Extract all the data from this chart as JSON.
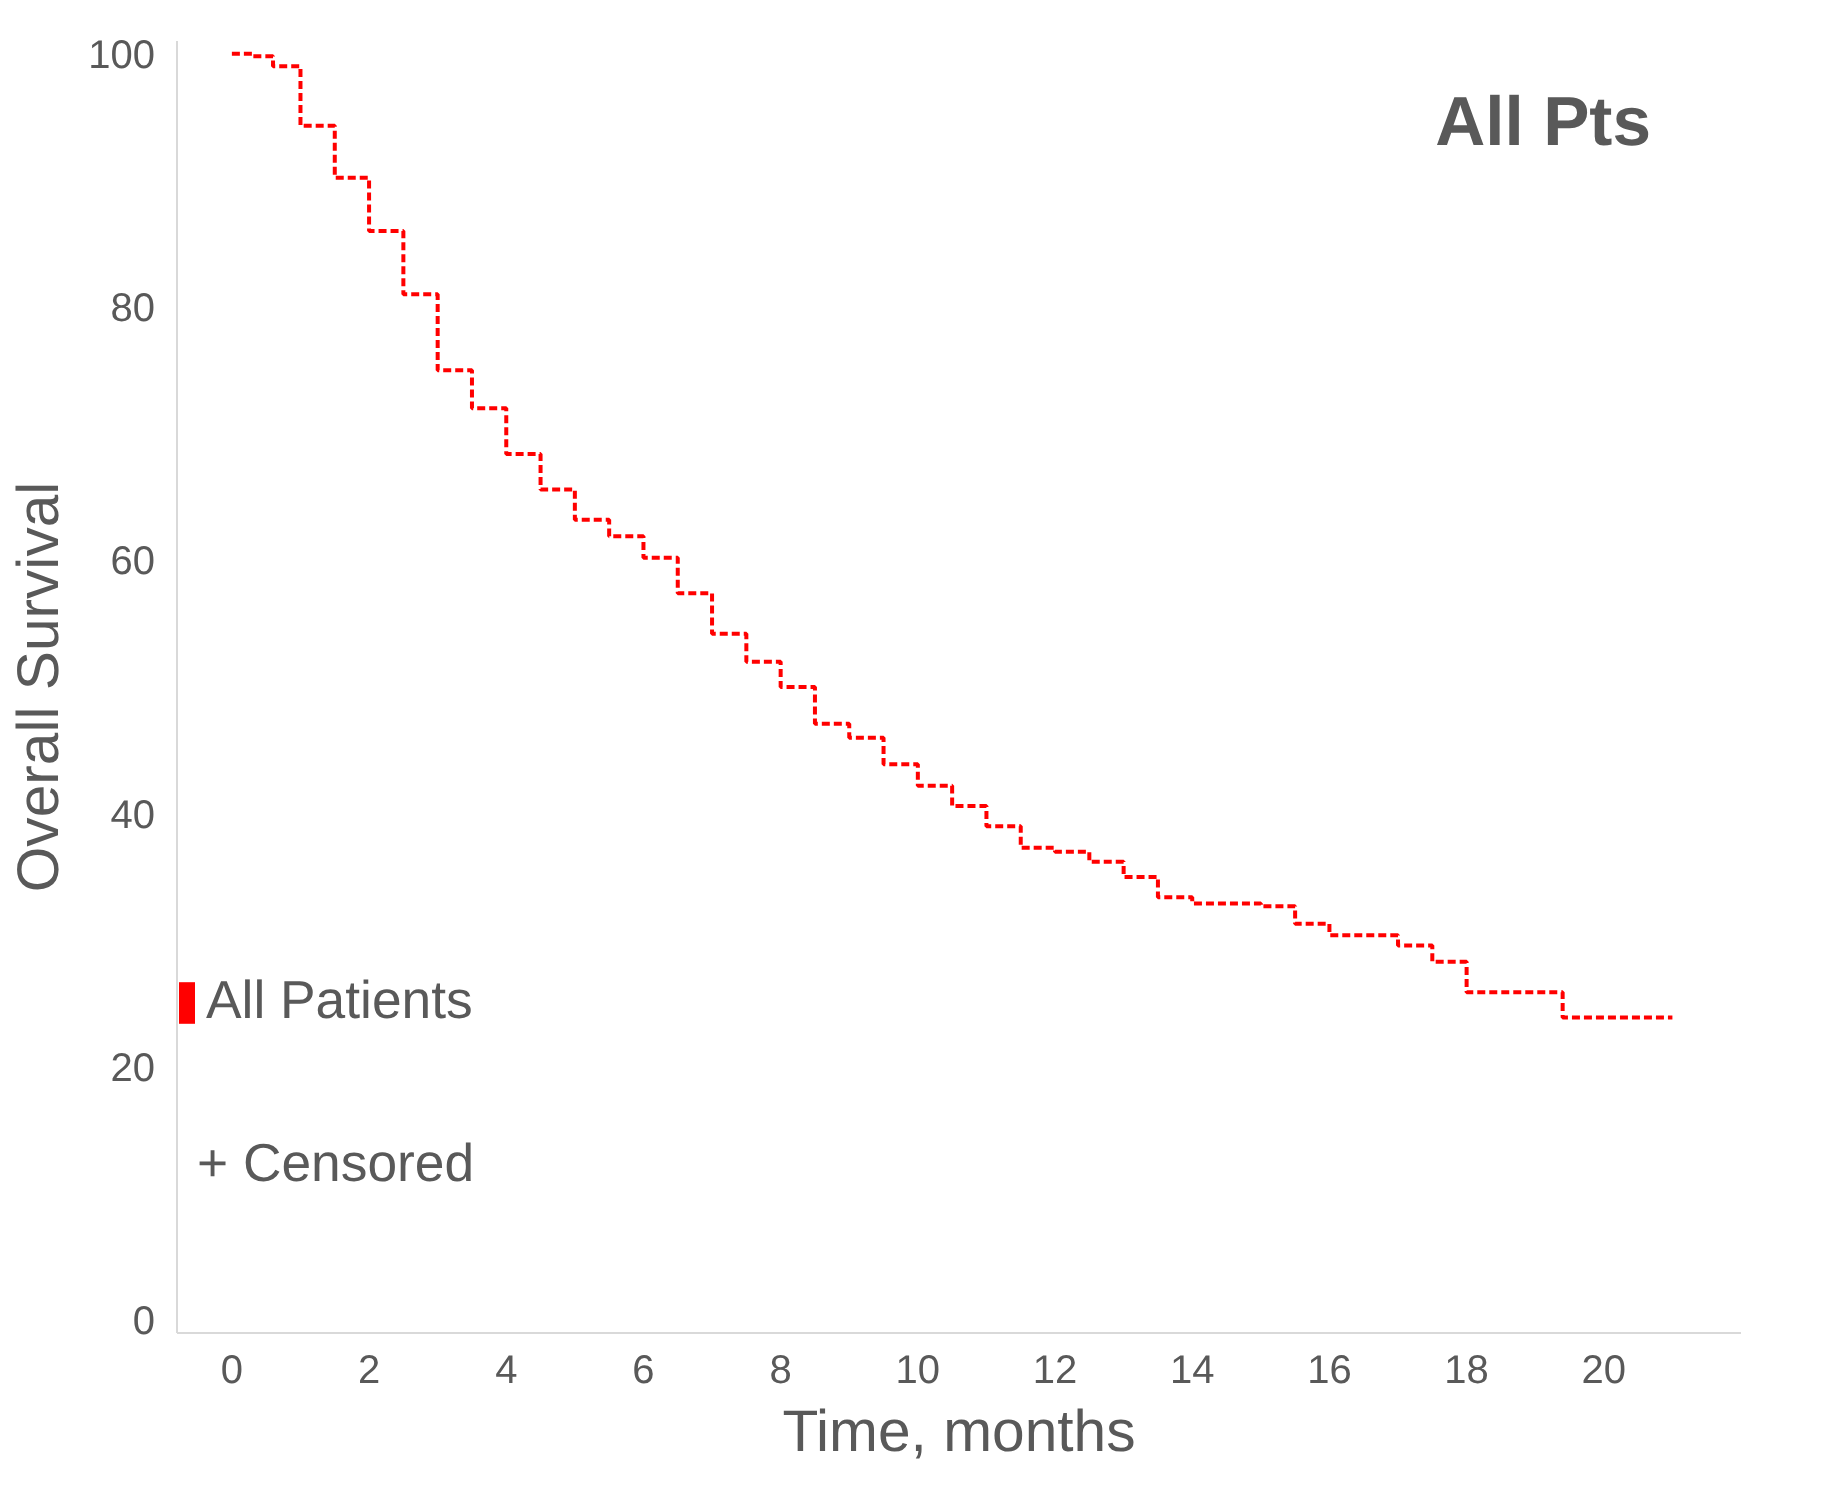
{
  "chart_data": {
    "type": "step",
    "title": "All Pts",
    "xlabel": "Time, months",
    "ylabel": "Overall Survival",
    "xlim": [
      -0.8,
      22
    ],
    "ylim": [
      -1,
      101
    ],
    "xticks": [
      0,
      2,
      4,
      6,
      8,
      10,
      12,
      14,
      16,
      18,
      20
    ],
    "yticks": [
      0,
      20,
      40,
      60,
      80,
      100
    ],
    "grid": false,
    "legend": "bottom left",
    "line_style": "dashed",
    "annotations": [
      "+ Censored"
    ],
    "series": [
      {
        "name": "All Patients",
        "color": "#ff0000",
        "x": [
          0,
          0.3,
          0.6,
          1,
          1.5,
          2,
          2.5,
          3,
          3.5,
          4,
          4.5,
          5,
          5.5,
          6,
          6.5,
          7,
          7.5,
          8,
          8.5,
          9,
          9.5,
          10,
          10.5,
          11,
          11.5,
          12,
          12.5,
          13,
          13.5,
          14,
          15,
          15.5,
          16,
          17,
          17.5,
          18,
          19,
          19.4,
          20,
          21
        ],
        "values": [
          100,
          99.8,
          99,
          94.3,
          90.2,
          86,
          81,
          75,
          72,
          68.4,
          65.6,
          63.2,
          61.9,
          60.2,
          57.4,
          54.2,
          52,
          50,
          47.1,
          46,
          43.9,
          42.2,
          40.6,
          39,
          37.3,
          37,
          36.2,
          35,
          33.4,
          32.9,
          32.7,
          31.3,
          30.4,
          29.6,
          28.3,
          25.9,
          25.9,
          23.9,
          23.9,
          23.9
        ]
      }
    ]
  }
}
